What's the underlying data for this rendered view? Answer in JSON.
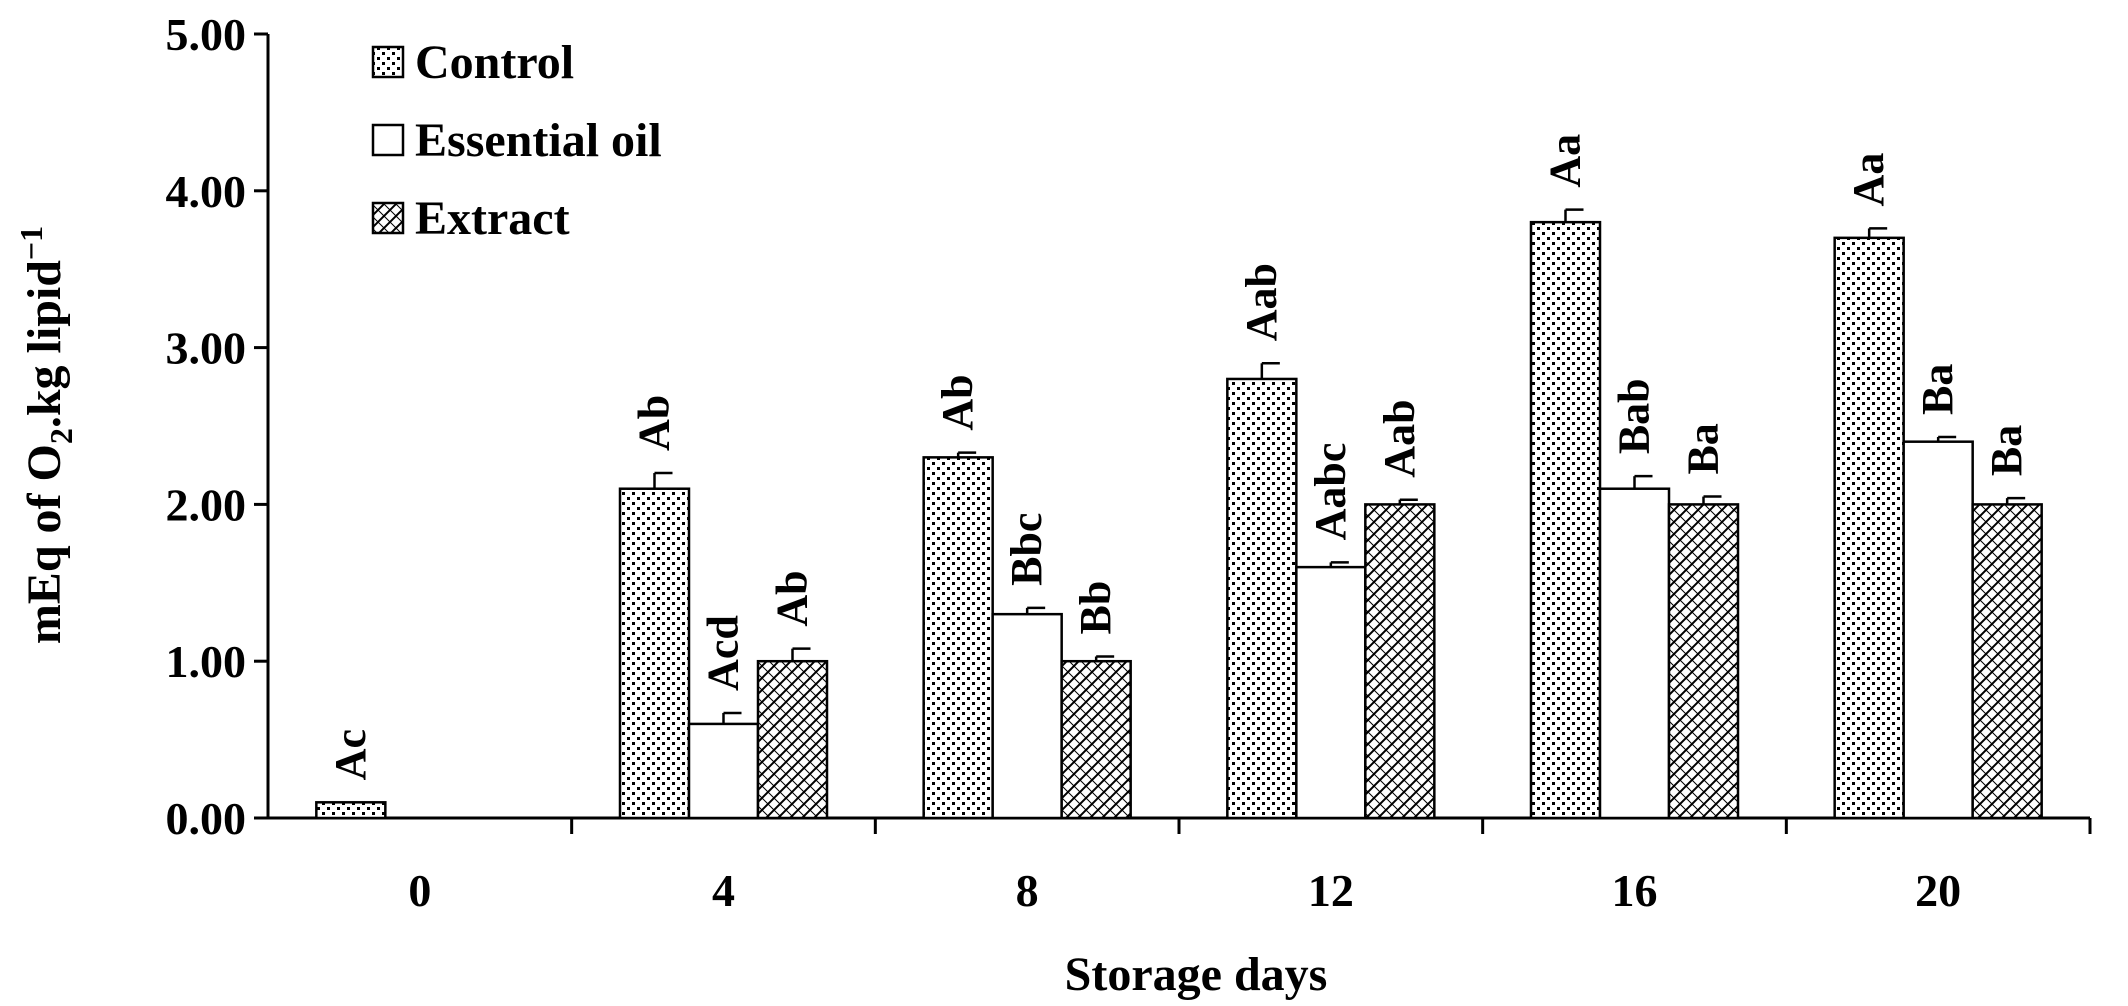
{
  "chart_data": {
    "type": "bar",
    "title": "",
    "xlabel": "Storage days",
    "ylabel": "mEq of O",
    "ylabel_sub": "2",
    "ylabel_rest": ".kg lipid",
    "ylabel_sup": "−1",
    "ylim": [
      0,
      5
    ],
    "yticks": [
      "0.00",
      "1.00",
      "2.00",
      "3.00",
      "4.00",
      "5.00"
    ],
    "categories": [
      "0",
      "4",
      "8",
      "12",
      "16",
      "20"
    ],
    "legend_position": "top-left",
    "series": [
      {
        "name": "Control",
        "pattern": "dots",
        "values": [
          0.1,
          2.1,
          2.3,
          2.8,
          3.8,
          3.7
        ],
        "errors": [
          0.0,
          0.1,
          0.03,
          0.1,
          0.08,
          0.06
        ],
        "labels": [
          "Ac",
          "Ab",
          "Ab",
          "Aab",
          "Aa",
          "Aa"
        ]
      },
      {
        "name": "Essential oil",
        "pattern": "none",
        "values": [
          null,
          0.6,
          1.3,
          1.6,
          2.1,
          2.4
        ],
        "errors": [
          null,
          0.07,
          0.04,
          0.03,
          0.08,
          0.03
        ],
        "labels": [
          "",
          "Acd",
          "Bbc",
          "Aabc",
          "Bab",
          "Ba"
        ]
      },
      {
        "name": "Extract",
        "pattern": "crosshatch",
        "values": [
          null,
          1.0,
          1.0,
          2.0,
          2.0,
          2.0
        ],
        "errors": [
          null,
          0.08,
          0.03,
          0.03,
          0.05,
          0.04
        ],
        "labels": [
          "",
          "Ab",
          "Bb",
          "Aab",
          "Ba",
          "Ba"
        ]
      }
    ],
    "colors": {
      "stroke": "#000000",
      "fill": "#ffffff"
    }
  }
}
